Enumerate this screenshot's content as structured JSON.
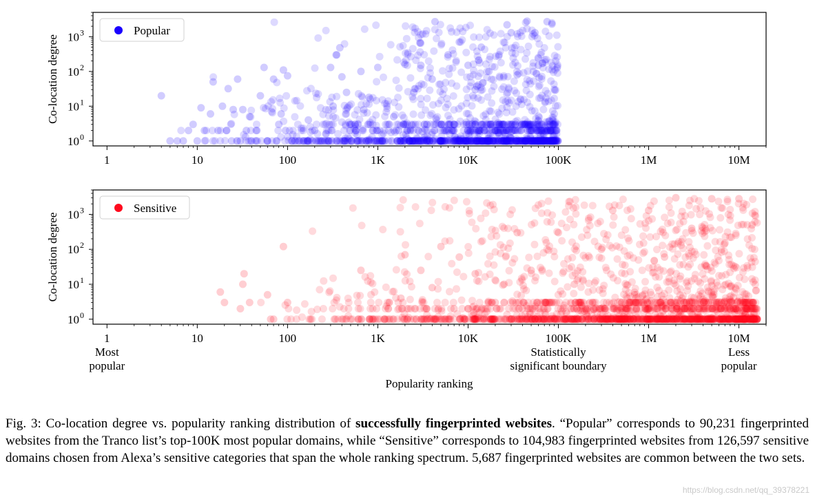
{
  "chart_data": [
    {
      "type": "scatter",
      "series": [
        {
          "name": "Popular",
          "color": "#1a00ff",
          "alpha": 0.15
        }
      ],
      "ylabel": "Co-location degree",
      "xlabel": "",
      "xscale": "log",
      "yscale": "log",
      "xlim": [
        0.7,
        20000000
      ],
      "ylim": [
        0.72,
        5000
      ],
      "xticks": [
        {
          "value": 1,
          "label": "1"
        },
        {
          "value": 10,
          "label": "10"
        },
        {
          "value": 100,
          "label": "100"
        },
        {
          "value": 1000,
          "label": "1K"
        },
        {
          "value": 10000,
          "label": "10K"
        },
        {
          "value": 100000,
          "label": "100K"
        },
        {
          "value": 1000000,
          "label": "1M"
        },
        {
          "value": 10000000,
          "label": "10M"
        }
      ],
      "yticks": [
        {
          "value": 1,
          "label": "10",
          "exp": "0"
        },
        {
          "value": 10,
          "label": "10",
          "exp": "1"
        },
        {
          "value": 100,
          "label": "10",
          "exp": "2"
        },
        {
          "value": 1000,
          "label": "10",
          "exp": "3"
        }
      ],
      "legend": {
        "position": "top-left"
      },
      "points": [
        [
          4,
          20
        ],
        [
          5,
          1
        ],
        [
          6,
          1
        ],
        [
          7,
          1
        ],
        [
          8,
          2
        ],
        [
          9,
          3
        ],
        [
          10,
          1
        ],
        [
          11,
          9
        ],
        [
          12,
          2
        ],
        [
          14,
          6
        ],
        [
          15,
          50
        ],
        [
          17,
          2
        ],
        [
          19,
          10
        ],
        [
          21,
          2
        ],
        [
          22,
          32
        ],
        [
          24,
          1
        ],
        [
          25,
          8
        ],
        [
          28,
          60
        ],
        [
          30,
          1
        ],
        [
          32,
          8
        ],
        [
          35,
          2
        ],
        [
          38,
          5
        ],
        [
          40,
          1
        ],
        [
          45,
          2
        ],
        [
          50,
          20
        ],
        [
          55,
          130
        ],
        [
          60,
          1
        ],
        [
          70,
          60
        ],
        [
          75,
          1
        ],
        [
          80,
          3
        ],
        [
          85,
          6
        ],
        [
          90,
          110
        ],
        [
          95,
          2
        ],
        [
          100,
          75
        ],
        [
          120,
          1
        ],
        [
          150,
          1
        ],
        [
          170,
          4
        ],
        [
          200,
          2
        ],
        [
          280,
          1
        ],
        [
          300,
          130
        ],
        [
          320,
          10
        ],
        [
          350,
          300
        ],
        [
          380,
          480
        ],
        [
          400,
          70
        ],
        [
          450,
          25
        ],
        [
          500,
          3
        ],
        [
          600,
          1
        ],
        [
          650,
          100
        ],
        [
          700,
          8
        ],
        [
          800,
          18
        ],
        [
          900,
          1
        ],
        [
          1000,
          130
        ],
        [
          1200,
          1
        ],
        [
          1500,
          5
        ],
        [
          1700,
          2
        ],
        [
          2000,
          160
        ],
        [
          2200,
          1
        ],
        [
          2500,
          25
        ],
        [
          2800,
          2
        ],
        [
          3000,
          150
        ],
        [
          3500,
          1
        ],
        [
          4000,
          60
        ],
        [
          4300,
          2700
        ],
        [
          5000,
          1
        ],
        [
          6000,
          300
        ],
        [
          7000,
          3
        ],
        [
          8000,
          700
        ],
        [
          9000,
          1
        ],
        [
          10000,
          150
        ],
        [
          11000,
          2
        ],
        [
          12000,
          30
        ],
        [
          14000,
          500
        ],
        [
          15000,
          1
        ],
        [
          17000,
          100
        ],
        [
          20000,
          2
        ],
        [
          22000,
          300
        ],
        [
          25000,
          1
        ],
        [
          27000,
          2200
        ],
        [
          30000,
          1300
        ],
        [
          35000,
          80
        ],
        [
          40000,
          1
        ],
        [
          45000,
          2800
        ],
        [
          50000,
          2
        ],
        [
          55000,
          1300
        ],
        [
          60000,
          150
        ],
        [
          70000,
          1
        ],
        [
          75000,
          2700
        ],
        [
          85000,
          2300
        ],
        [
          95000,
          2
        ]
      ]
    },
    {
      "type": "scatter",
      "series": [
        {
          "name": "Sensitive",
          "color": "#ff0a1e",
          "alpha": 0.15
        }
      ],
      "ylabel": "Co-location degree",
      "xlabel": "Popularity ranking",
      "xscale": "log",
      "yscale": "log",
      "xlim": [
        0.7,
        20000000
      ],
      "ylim": [
        0.72,
        5000
      ],
      "xticks": [
        {
          "value": 1,
          "label": "1",
          "sub": "Most\npopular"
        },
        {
          "value": 10,
          "label": "10"
        },
        {
          "value": 100,
          "label": "100"
        },
        {
          "value": 1000,
          "label": "1K"
        },
        {
          "value": 10000,
          "label": "10K"
        },
        {
          "value": 100000,
          "label": "100K",
          "sub": "Statistically\nsignificant boundary"
        },
        {
          "value": 1000000,
          "label": "1M"
        },
        {
          "value": 10000000,
          "label": "10M",
          "sub": "Less\npopular"
        }
      ],
      "yticks": [
        {
          "value": 1,
          "label": "10",
          "exp": "0"
        },
        {
          "value": 10,
          "label": "10",
          "exp": "1"
        },
        {
          "value": 100,
          "label": "10",
          "exp": "2"
        },
        {
          "value": 1000,
          "label": "10",
          "exp": "3"
        }
      ],
      "legend": {
        "position": "top-left"
      },
      "points": [
        [
          18,
          6
        ],
        [
          20,
          3
        ],
        [
          30,
          2
        ],
        [
          32,
          10
        ],
        [
          33,
          20
        ],
        [
          38,
          3
        ],
        [
          60,
          5
        ],
        [
          65,
          1
        ],
        [
          70,
          1
        ],
        [
          90,
          120
        ],
        [
          100,
          3
        ],
        [
          180,
          1
        ],
        [
          330,
          1
        ],
        [
          400,
          1
        ],
        [
          500,
          1
        ],
        [
          650,
          25
        ],
        [
          1000,
          1
        ],
        [
          1500,
          1
        ],
        [
          1800,
          4
        ],
        [
          2000,
          70
        ],
        [
          2500,
          1
        ],
        [
          3000,
          25
        ],
        [
          3500,
          1
        ],
        [
          4000,
          8
        ],
        [
          5000,
          120
        ],
        [
          6000,
          1
        ],
        [
          7000,
          2
        ],
        [
          8000,
          60
        ],
        [
          9000,
          1
        ],
        [
          10000,
          2
        ],
        [
          12000,
          20
        ],
        [
          15000,
          1
        ],
        [
          20000,
          3
        ],
        [
          25000,
          10
        ],
        [
          30000,
          1
        ],
        [
          35000,
          300
        ],
        [
          40000,
          2
        ],
        [
          50000,
          25
        ],
        [
          60000,
          1
        ],
        [
          80000,
          3
        ],
        [
          100000,
          300
        ],
        [
          120000,
          1
        ],
        [
          150000,
          10
        ],
        [
          200000,
          2
        ],
        [
          300000,
          100
        ],
        [
          400000,
          1300
        ],
        [
          500000,
          2
        ],
        [
          700000,
          5
        ],
        [
          1000000,
          1300
        ],
        [
          1300000,
          1
        ],
        [
          1500000,
          60
        ],
        [
          2000000,
          3000
        ],
        [
          2500000,
          2
        ],
        [
          3000000,
          400
        ],
        [
          4000000,
          1
        ],
        [
          5000000,
          2800
        ],
        [
          6000000,
          3
        ],
        [
          7000000,
          150
        ],
        [
          8000000,
          1
        ],
        [
          10000000,
          2800
        ],
        [
          12000000,
          2
        ],
        [
          14000000,
          500
        ],
        [
          16000000,
          1
        ]
      ]
    }
  ],
  "caption": {
    "prefix": "Fig. 3: Co-location degree vs. popularity ranking distribution of ",
    "bold": "successfully fingerprinted websites",
    "suffix": ". “Popular” corresponds to 90,231 fingerprinted websites from the Tranco list’s top-100K most popular domains, while “Sensitive” corresponds to 104,983 fingerprinted websites from 126,597 sensitive domains chosen from Alexa’s sensitive categories that span the whole ranking spectrum. 5,687 fingerprinted websites are common between the two sets."
  },
  "watermark": "https://blog.csdn.net/qq_39378221"
}
